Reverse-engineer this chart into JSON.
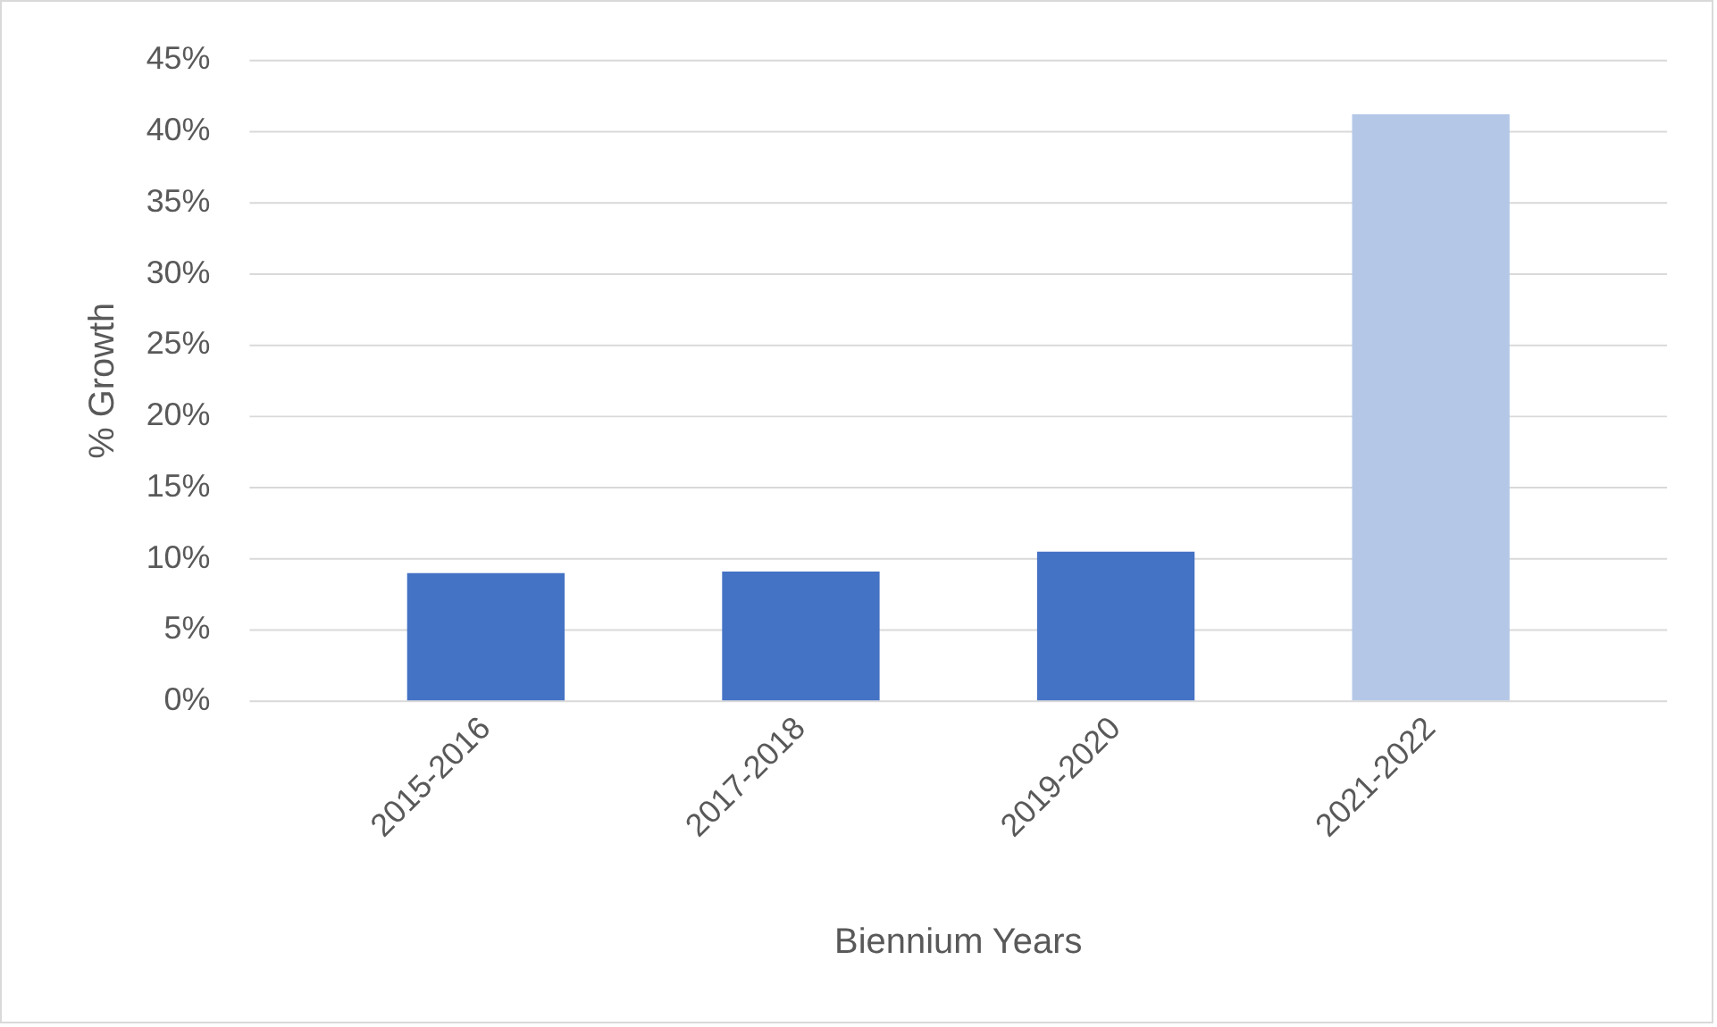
{
  "chart_data": {
    "type": "bar",
    "xlabel": "Biennium Years",
    "ylabel": "% Growth",
    "categories": [
      "2015-2016",
      "2017-2018",
      "2019-2020",
      "2021-2022"
    ],
    "values": [
      9.0,
      9.1,
      10.5,
      41.2
    ],
    "colors": [
      "#4472c4",
      "#4472c4",
      "#4472c4",
      "#b4c7e7"
    ],
    "ylim": [
      0,
      45
    ],
    "yticks": [
      {
        "value": 0,
        "label": "0%"
      },
      {
        "value": 5,
        "label": "5%"
      },
      {
        "value": 10,
        "label": "10%"
      },
      {
        "value": 15,
        "label": "15%"
      },
      {
        "value": 20,
        "label": "20%"
      },
      {
        "value": 25,
        "label": "25%"
      },
      {
        "value": 30,
        "label": "30%"
      },
      {
        "value": 35,
        "label": "35%"
      },
      {
        "value": 40,
        "label": "40%"
      },
      {
        "value": 45,
        "label": "45%"
      }
    ],
    "grid": "y"
  }
}
